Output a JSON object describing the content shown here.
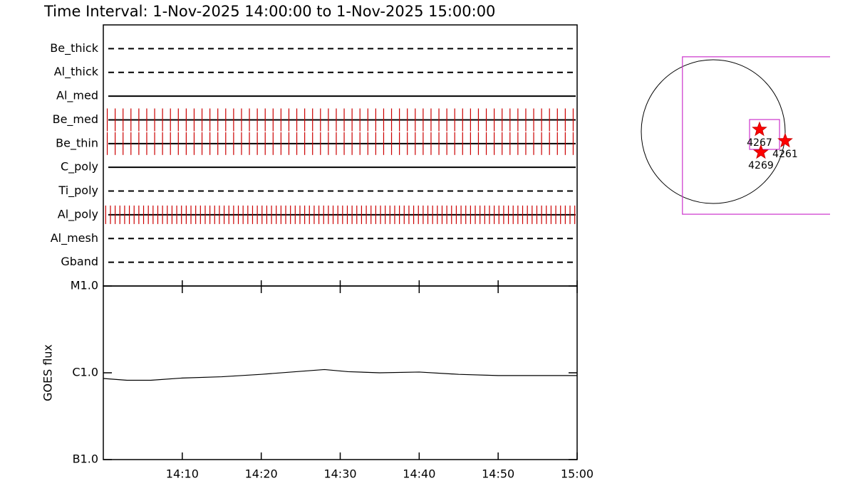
{
  "title": "Time Interval:  1-Nov-2025 14:00:00 to  1-Nov-2025 15:00:00",
  "chart_data": [
    {
      "type": "timeline",
      "categories": [
        "Be_thick",
        "Al_thick",
        "Al_med",
        "Be_med",
        "Be_thin",
        "C_poly",
        "Ti_poly",
        "Al_poly",
        "Al_mesh",
        "Gband"
      ],
      "styles": [
        "dashed",
        "dashed",
        "solid",
        "solid",
        "solid",
        "solid",
        "dashed",
        "solid",
        "dashed",
        "dashed"
      ],
      "color": "#cc0000",
      "xlim": [
        0,
        60
      ],
      "observations": [
        [],
        [],
        [],
        [
          0.5,
          1.5,
          2.5,
          3.5,
          4.5,
          5.5,
          6.5,
          7.5,
          8.5,
          9.5,
          10.5,
          11.5,
          12.5,
          13.5,
          14.5,
          15.5,
          16.5,
          17.5,
          18.5,
          19.5,
          20.5,
          21.5,
          22.5,
          23.5,
          24.5,
          25.5,
          26.5,
          27.5,
          28.5,
          29.5,
          30.5,
          31.5,
          32.5,
          33.5,
          34.5,
          35.5,
          36.5,
          37.5,
          38.5,
          39.5,
          40.5,
          41.5,
          42.5,
          43.5,
          44.5,
          45.5,
          46.5,
          47.5,
          48.5,
          49.5,
          50.5,
          51.5,
          52.5,
          53.5,
          54.5,
          55.5,
          56.5,
          57.5,
          58.5,
          59.5
        ],
        [
          0.5,
          1.5,
          2.5,
          3.5,
          4.5,
          5.5,
          6.5,
          7.5,
          8.5,
          9.5,
          10.5,
          11.5,
          12.5,
          13.5,
          14.5,
          15.5,
          16.5,
          17.5,
          18.5,
          19.5,
          20.5,
          21.5,
          22.5,
          23.5,
          24.5,
          25.5,
          26.5,
          27.5,
          28.5,
          29.5,
          30.5,
          31.5,
          32.5,
          33.5,
          34.5,
          35.5,
          36.5,
          37.5,
          38.5,
          39.5,
          40.5,
          41.5,
          42.5,
          43.5,
          44.5,
          45.5,
          46.5,
          47.5,
          48.5,
          49.5,
          50.5,
          51.5,
          52.5,
          53.5,
          54.5,
          55.5,
          56.5,
          57.5,
          58.5,
          59.5
        ],
        [],
        [],
        [
          0.3,
          0.9,
          1.5,
          2.1,
          2.7,
          3.3,
          3.9,
          4.5,
          5.1,
          5.7,
          6.3,
          6.9,
          7.5,
          8.1,
          8.7,
          9.3,
          9.9,
          10.5,
          11.1,
          11.7,
          12.3,
          12.9,
          13.5,
          14.1,
          14.7,
          15.3,
          15.9,
          16.5,
          17.1,
          17.7,
          18.3,
          18.9,
          19.5,
          20.1,
          20.7,
          21.3,
          21.9,
          22.5,
          23.1,
          23.7,
          24.3,
          24.9,
          25.5,
          26.1,
          26.7,
          27.3,
          27.9,
          28.5,
          29.1,
          29.7,
          30.3,
          30.9,
          31.5,
          32.1,
          32.7,
          33.3,
          33.9,
          34.5,
          35.1,
          35.7,
          36.3,
          36.9,
          37.5,
          38.1,
          38.7,
          39.3,
          39.9,
          40.5,
          41.1,
          41.7,
          42.3,
          42.9,
          43.5,
          44.1,
          44.7,
          45.3,
          45.9,
          46.5,
          47.1,
          47.7,
          48.3,
          48.9,
          49.5,
          50.1,
          50.7,
          51.3,
          51.9,
          52.5,
          53.1,
          53.7,
          54.3,
          54.9,
          55.5,
          56.1,
          56.7,
          57.3,
          57.9,
          58.5,
          59.1,
          59.7
        ],
        [],
        []
      ]
    },
    {
      "type": "line",
      "ylabel": "GOES flux",
      "color": "#000000",
      "log": true,
      "xlim": [
        0,
        60
      ],
      "xticks": [
        {
          "value": 10,
          "label": "14:10"
        },
        {
          "value": 20,
          "label": "14:20"
        },
        {
          "value": 30,
          "label": "14:30"
        },
        {
          "value": 40,
          "label": "14:40"
        },
        {
          "value": 50,
          "label": "14:50"
        },
        {
          "value": 60,
          "label": "15:00"
        }
      ],
      "ylim": [
        1e-07,
        1e-05
      ],
      "yticks": [
        {
          "value": 1e-07,
          "label": "B1.0"
        },
        {
          "value": 1e-06,
          "label": "C1.0"
        },
        {
          "value": 1e-05,
          "label": "M1.0"
        }
      ],
      "x": [
        0,
        3,
        6,
        10,
        15,
        20,
        25,
        28,
        31,
        35,
        40,
        45,
        50,
        55,
        60
      ],
      "values": [
        8.6e-07,
        8.2e-07,
        8.2e-07,
        8.7e-07,
        9e-07,
        9.6e-07,
        1.04e-06,
        1.09e-06,
        1.03e-06,
        1e-06,
        1.02e-06,
        9.6e-07,
        9.3e-07,
        9.3e-07,
        9.3e-07
      ]
    }
  ],
  "map": {
    "rsun": 970,
    "fov": {
      "x": [
        -415,
        1700
      ],
      "y": [
        -1115,
        1010
      ]
    },
    "subfield": {
      "x": [
        490,
        894
      ],
      "y": [
        -240,
        163
      ]
    },
    "color": "#cc33cc",
    "regions": [
      {
        "label": "4267",
        "x": 624,
        "y": 29
      },
      {
        "label": "4261",
        "x": 970,
        "y": -125
      },
      {
        "label": "4269",
        "x": 643,
        "y": -279
      }
    ]
  }
}
